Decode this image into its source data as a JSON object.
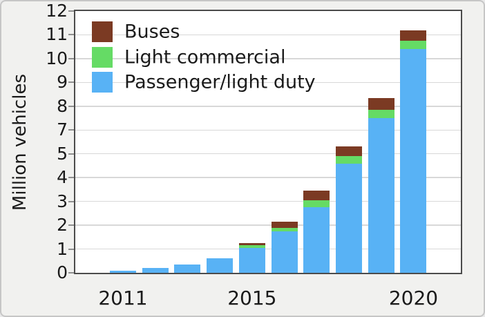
{
  "figure": {
    "ylabel": "Million vehicles",
    "background_color": "#f1f1ef",
    "plot_background_color": "#ffffff",
    "frame_color": "#4b4b4b",
    "grid_color": "#d8d8d8",
    "text_color": "#1a1a1a"
  },
  "legend": {
    "items": [
      {
        "label": "Buses",
        "color": "#7b3a23"
      },
      {
        "label": "Light commercial",
        "color": "#65db65"
      },
      {
        "label": "Passenger/light duty",
        "color": "#58b2f5"
      }
    ]
  },
  "axes": {
    "y_tick_labels_top_to_bottom": [
      "12",
      "11",
      "10",
      "9",
      "8",
      "7",
      "5",
      "4",
      "3",
      "2",
      "1",
      "0"
    ],
    "y_tick_values_bottom_to_top": [
      0,
      1,
      2,
      3,
      4,
      5,
      7,
      8,
      9,
      10,
      11,
      12
    ],
    "y_axis_note": "12 evenly spaced gridlines; the label 6 is absent (one gridline step spans 5 to 7)",
    "x_tick_labels": [
      {
        "label": "2011",
        "bar_index": 0
      },
      {
        "label": "2015",
        "bar_index": 4
      },
      {
        "label": "2020",
        "bar_index": 9
      }
    ]
  },
  "chart_data": {
    "type": "bar",
    "stacked": true,
    "title": "",
    "xlabel": "",
    "ylabel": "Million vehicles",
    "legend_position": "upper left inside plot",
    "grid": true,
    "categories": [
      2011,
      2012,
      2013,
      2014,
      2015,
      2016,
      2017,
      2018,
      2019,
      2020
    ],
    "series": [
      {
        "name": "Passenger/light duty",
        "color": "#58b2f5",
        "values": [
          0.08,
          0.2,
          0.35,
          0.6,
          1.05,
          1.75,
          2.75,
          4.6,
          7.5,
          10.4
        ]
      },
      {
        "name": "Light commercial",
        "color": "#65db65",
        "values": [
          0,
          0,
          0,
          0,
          0.1,
          0.15,
          0.3,
          0.3,
          0.35,
          0.35
        ]
      },
      {
        "name": "Buses",
        "color": "#7b3a23",
        "values": [
          0,
          0,
          0,
          0,
          0.1,
          0.25,
          0.4,
          0.7,
          0.5,
          0.45
        ]
      }
    ],
    "totals": [
      0.08,
      0.2,
      0.35,
      0.6,
      1.25,
      2.15,
      3.45,
      5.6,
      8.35,
      11.2
    ]
  }
}
